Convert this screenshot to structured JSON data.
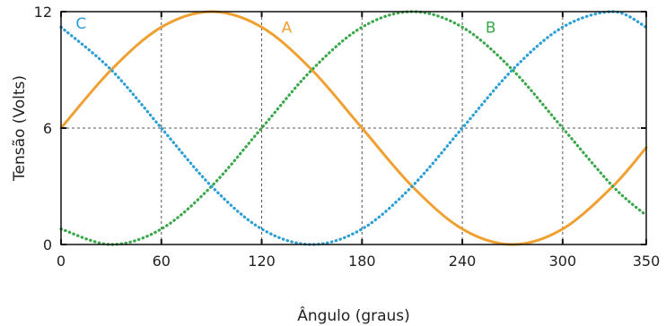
{
  "chart_data": {
    "type": "line",
    "xlabel": "Ângulo (graus)",
    "ylabel": "Tensão (Volts)",
    "xlim": [
      0,
      350
    ],
    "ylim": [
      0,
      12
    ],
    "x_ticks": [
      0,
      60,
      120,
      180,
      240,
      300,
      350
    ],
    "x_tick_labels": [
      "0",
      "60",
      "120",
      "180",
      "240",
      "300",
      "350"
    ],
    "y_ticks": [
      0,
      6,
      12
    ],
    "y_tick_labels": [
      "0",
      "6",
      "12"
    ],
    "grid": true,
    "legend": "none",
    "series": [
      {
        "name": "A",
        "color": "#f0a030",
        "style": "solid",
        "x": [
          0,
          30,
          60,
          90,
          120,
          150,
          180,
          210,
          240,
          270,
          300,
          330,
          350
        ],
        "y": [
          6.0,
          9.0,
          11.2,
          12.0,
          11.2,
          9.0,
          6.0,
          3.0,
          0.8,
          0.0,
          0.8,
          3.0,
          5.0
        ]
      },
      {
        "name": "B",
        "color": "#3aa84a",
        "style": "dotted",
        "x": [
          0,
          30,
          60,
          90,
          120,
          150,
          180,
          210,
          240,
          270,
          300,
          330,
          350
        ],
        "y": [
          0.8,
          0.0,
          0.8,
          3.0,
          6.0,
          9.0,
          11.2,
          12.0,
          11.2,
          9.0,
          6.0,
          3.0,
          1.5
        ]
      },
      {
        "name": "C",
        "color": "#2a9fd6",
        "style": "dotted",
        "x": [
          0,
          30,
          60,
          90,
          120,
          150,
          180,
          210,
          240,
          270,
          300,
          330,
          350
        ],
        "y": [
          11.2,
          9.0,
          6.0,
          3.0,
          0.8,
          0.0,
          0.8,
          3.0,
          6.0,
          9.0,
          11.2,
          12.0,
          11.2
        ]
      }
    ],
    "series_labels": [
      {
        "text": "A",
        "x": 135,
        "y": 11.2,
        "color": "#f0a030"
      },
      {
        "text": "B",
        "x": 257,
        "y": 11.2,
        "color": "#3aa84a"
      },
      {
        "text": "C",
        "x": 12,
        "y": 11.4,
        "color": "#2a9fd6"
      }
    ]
  }
}
